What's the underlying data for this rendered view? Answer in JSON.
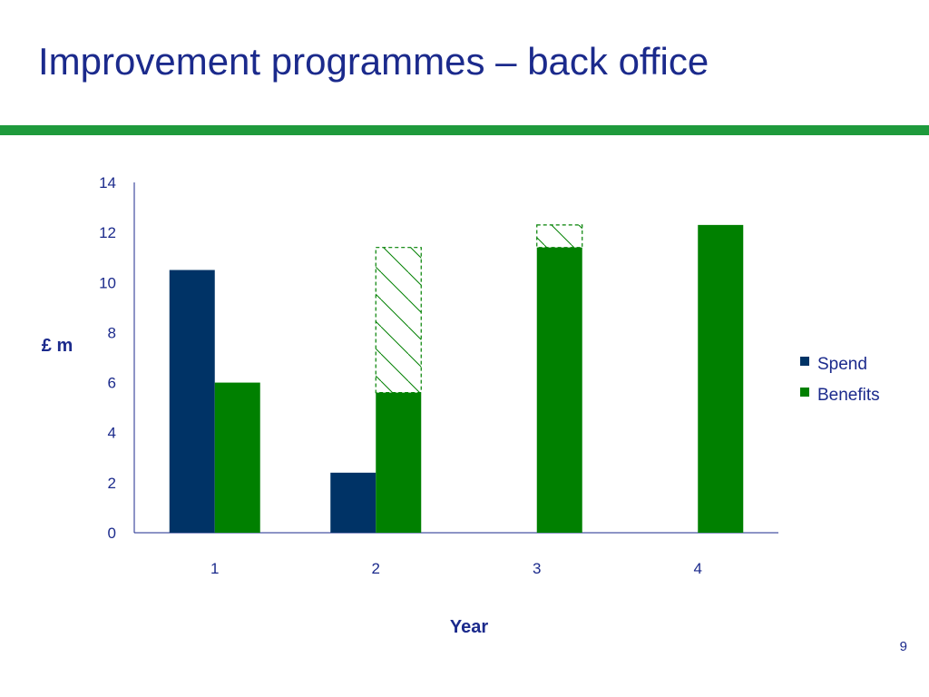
{
  "slide": {
    "title": "Improvement programmes – back office",
    "page_number": "9",
    "accent_color": "#1e9a3c",
    "title_color": "#1b2a8c"
  },
  "chart_data": {
    "type": "bar",
    "title": "",
    "xlabel": "Year",
    "ylabel": "£ m",
    "ylim": [
      0,
      14
    ],
    "yticks": [
      "0",
      "2",
      "4",
      "6",
      "8",
      "10",
      "12",
      "14"
    ],
    "categories": [
      "1",
      "2",
      "3",
      "4"
    ],
    "series": [
      {
        "name": "Spend",
        "values": [
          10.5,
          2.4,
          0,
          0
        ],
        "color": "#003366"
      },
      {
        "name": "Benefits",
        "values": [
          6.0,
          5.6,
          11.4,
          12.3
        ],
        "color": "#008000"
      }
    ],
    "hatched_extensions": [
      {
        "category": "2",
        "series": "Benefits",
        "from": 5.6,
        "to": 11.4
      },
      {
        "category": "3",
        "series": "Benefits",
        "from": 11.4,
        "to": 12.3
      }
    ],
    "legend_position": "right",
    "grid": false
  }
}
